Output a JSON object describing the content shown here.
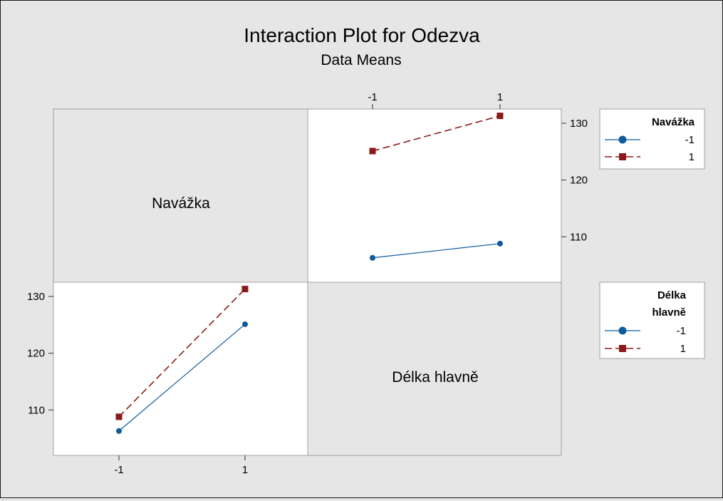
{
  "chart_data": {
    "type": "line",
    "title": "Interaction Plot for Odezva",
    "subtitle": "Data Means",
    "factors": [
      "Navážka",
      "Délka hlavně"
    ],
    "levels": [
      "-1",
      "1"
    ],
    "yticks": [
      110,
      120,
      130
    ],
    "ylim": [
      102,
      132.5
    ],
    "series_colors": {
      "-1": "#0f5a9a",
      "1": "#8b1a1a"
    },
    "panels": [
      {
        "position": "top-right",
        "x_factor": "Délka hlavně",
        "legend_factor": "Navážka",
        "series": [
          {
            "name": "-1",
            "x": [
              "-1",
              "1"
            ],
            "values": [
              106.3,
              108.8
            ]
          },
          {
            "name": "1",
            "x": [
              "-1",
              "1"
            ],
            "values": [
              125.1,
              131.3
            ]
          }
        ]
      },
      {
        "position": "bottom-left",
        "x_factor": "Navážka",
        "legend_factor": "Délka hlavně",
        "series": [
          {
            "name": "-1",
            "x": [
              "-1",
              "1"
            ],
            "values": [
              106.3,
              125.1
            ]
          },
          {
            "name": "1",
            "x": [
              "-1",
              "1"
            ],
            "values": [
              108.8,
              131.3
            ]
          }
        ]
      }
    ],
    "legends": [
      {
        "title": "Navážka",
        "items": [
          "-1",
          "1"
        ]
      },
      {
        "title": "Délka hlavně",
        "title_lines": [
          "Délka",
          "hlavně"
        ],
        "items": [
          "-1",
          "1"
        ]
      }
    ]
  }
}
